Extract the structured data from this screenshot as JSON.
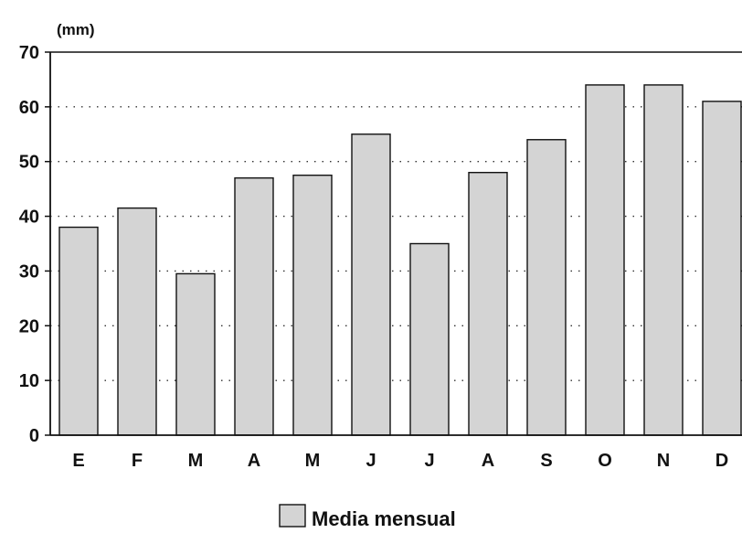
{
  "chart_data": {
    "type": "bar",
    "title": "",
    "xlabel": "",
    "ylabel": "(mm)",
    "categories": [
      "E",
      "F",
      "M",
      "A",
      "M",
      "J",
      "J",
      "A",
      "S",
      "O",
      "N",
      "D"
    ],
    "series": [
      {
        "name": "Media mensual",
        "values": [
          38,
          41.5,
          29.5,
          47,
          47.5,
          55,
          35,
          48,
          54,
          64,
          64,
          61
        ],
        "color": "#d4d4d4"
      }
    ],
    "ylim": [
      0,
      70
    ],
    "yticks": [
      0,
      10,
      20,
      30,
      40,
      50,
      60,
      70
    ],
    "grid": "horizontal-dotted",
    "legend": "bottom-center"
  }
}
